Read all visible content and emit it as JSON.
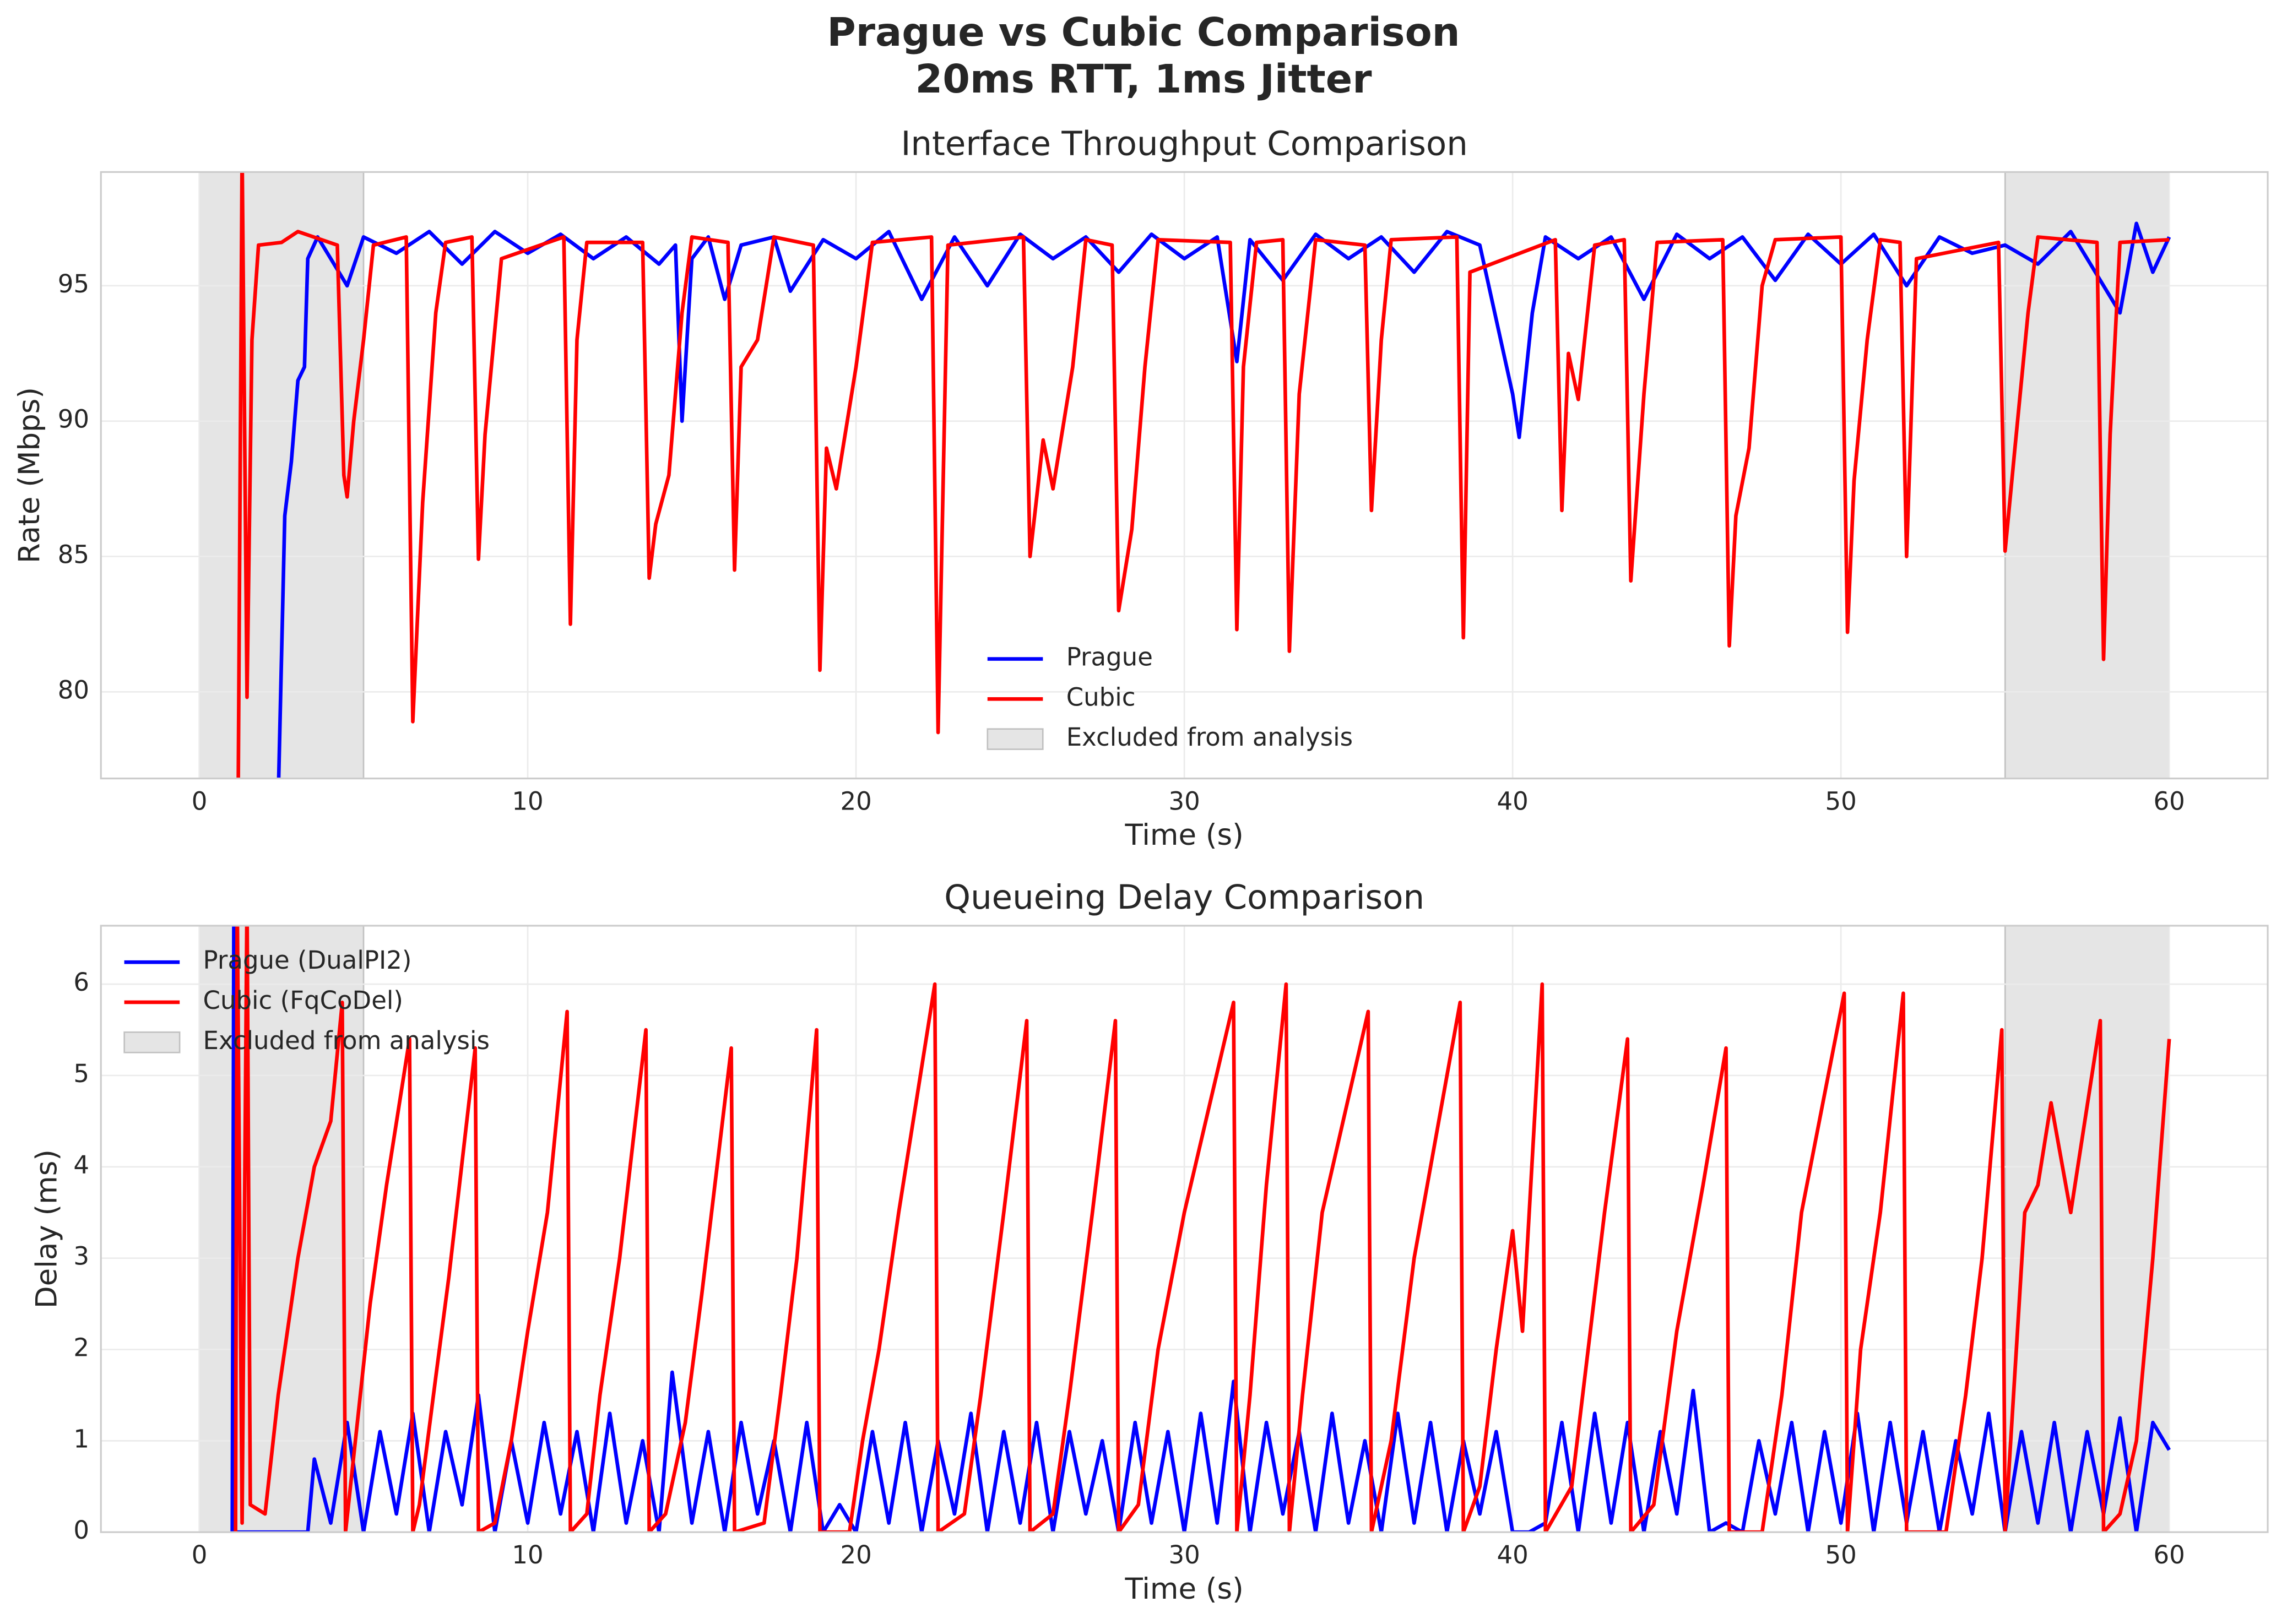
{
  "title": [
    "Prague vs Cubic Comparison",
    "20ms RTT, 1ms Jitter"
  ],
  "chart_data": [
    {
      "type": "line",
      "title": "Interface Throughput Comparison",
      "xlabel": "Time (s)",
      "ylabel": "Rate (Mbps)",
      "xlim": [
        -3,
        63
      ],
      "ylim": [
        76.8,
        99.2
      ],
      "xticks": [
        0,
        10,
        20,
        30,
        40,
        50,
        60
      ],
      "yticks": [
        80,
        85,
        90,
        95
      ],
      "grid": true,
      "legend": "lower center",
      "excluded_label": "Excluded from analysis",
      "excluded_color": "#bfbfbf",
      "excluded": [
        [
          0,
          5
        ],
        [
          55,
          60
        ]
      ],
      "series": [
        {
          "name": "Prague",
          "color": "#0000ff",
          "x": [
            2.4,
            2.6,
            2.8,
            3,
            3.2,
            3.3,
            3.6,
            4,
            4.5,
            5,
            6,
            7,
            8,
            9,
            10,
            11,
            12,
            13,
            14,
            14.5,
            14.7,
            15,
            15.5,
            16,
            16.5,
            17.5,
            18,
            19,
            20,
            21,
            22,
            23,
            24,
            25,
            26,
            27,
            28,
            29,
            30,
            31,
            31.6,
            32,
            33,
            34,
            35,
            36,
            37,
            38,
            39,
            40,
            40.2,
            40.6,
            41,
            42,
            43,
            44,
            45,
            46,
            47,
            48,
            49,
            50,
            51,
            52,
            53,
            54,
            55,
            56,
            57,
            58.5,
            59,
            59.5,
            60
          ],
          "values": [
            76,
            86.5,
            88.5,
            91.5,
            92,
            96,
            96.8,
            96,
            95,
            96.8,
            96.2,
            97,
            95.8,
            97,
            96.2,
            96.9,
            96,
            96.8,
            95.8,
            96.5,
            90,
            96,
            96.8,
            94.5,
            96.5,
            96.8,
            94.8,
            96.7,
            96,
            97,
            94.5,
            96.8,
            95,
            96.9,
            96,
            96.8,
            95.5,
            96.9,
            96,
            96.8,
            92.2,
            96.7,
            95.2,
            96.9,
            96,
            96.8,
            95.5,
            97,
            96.5,
            91,
            89.4,
            94,
            96.8,
            96,
            96.8,
            94.5,
            96.9,
            96,
            96.8,
            95.2,
            96.9,
            95.8,
            96.9,
            95,
            96.8,
            96.2,
            96.5,
            95.8,
            97,
            94,
            97.3,
            95.5,
            96.8
          ]
        },
        {
          "name": "Cubic",
          "color": "#ff0000",
          "x": [
            1.15,
            1.3,
            1.45,
            1.6,
            1.8,
            2.5,
            3,
            4.2,
            4.4,
            4.5,
            4.7,
            5,
            5.3,
            6.3,
            6.5,
            6.8,
            7.2,
            7.5,
            8.3,
            8.5,
            8.7,
            9.2,
            11.1,
            11.3,
            11.5,
            11.8,
            13.5,
            13.7,
            13.9,
            14.3,
            14.7,
            15,
            16.1,
            16.3,
            16.5,
            17,
            17.5,
            18.7,
            18.9,
            19.1,
            19.4,
            20,
            20.5,
            22.3,
            22.5,
            22.8,
            25.1,
            25.3,
            25.7,
            26,
            26.6,
            27,
            27.8,
            28,
            28.4,
            28.8,
            29.2,
            31.4,
            31.6,
            31.8,
            32.2,
            33,
            33.2,
            33.5,
            34,
            35.5,
            35.7,
            36,
            36.3,
            38.3,
            38.5,
            38.7,
            41.3,
            41.5,
            41.7,
            42,
            42.5,
            43.4,
            43.6,
            44,
            44.4,
            46.4,
            46.6,
            46.8,
            47.2,
            47.6,
            48,
            50,
            50.2,
            50.4,
            50.8,
            51.2,
            51.8,
            52,
            52.3,
            54.8,
            55,
            55.3,
            55.7,
            56,
            57.8,
            58,
            58.2,
            58.5,
            60
          ],
          "values": [
            70,
            100,
            79.8,
            93,
            96.5,
            96.6,
            97,
            96.5,
            88,
            87.2,
            90,
            93,
            96.5,
            96.8,
            78.9,
            87,
            94,
            96.6,
            96.8,
            84.9,
            89.5,
            96,
            96.8,
            82.5,
            93,
            96.6,
            96.6,
            84.2,
            86.2,
            88,
            94,
            96.8,
            96.6,
            84.5,
            92,
            93,
            96.8,
            96.5,
            80.8,
            89,
            87.5,
            92,
            96.6,
            96.8,
            78.5,
            96.5,
            96.8,
            85,
            89.3,
            87.5,
            92,
            96.7,
            96.5,
            83,
            86,
            92,
            96.7,
            96.6,
            82.3,
            92,
            96.6,
            96.7,
            81.5,
            91,
            96.7,
            96.5,
            86.7,
            93,
            96.7,
            96.8,
            82,
            95.5,
            96.7,
            86.7,
            92.5,
            90.8,
            96.5,
            96.7,
            84.1,
            91,
            96.6,
            96.7,
            81.7,
            86.5,
            89,
            95,
            96.7,
            96.8,
            82.2,
            87.8,
            93,
            96.7,
            96.6,
            85,
            96,
            96.6,
            85.2,
            89,
            94,
            96.8,
            96.6,
            81.2,
            89.5,
            96.6,
            96.7
          ]
        }
      ]
    },
    {
      "type": "line",
      "title": "Queueing Delay Comparison",
      "xlabel": "Time (s)",
      "ylabel": "Delay (ms)",
      "xlim": [
        -3,
        63
      ],
      "ylim": [
        0,
        6.64
      ],
      "xticks": [
        0,
        10,
        20,
        30,
        40,
        50,
        60
      ],
      "yticks": [
        0,
        1,
        2,
        3,
        4,
        5,
        6
      ],
      "grid": true,
      "legend": "upper left",
      "excluded_label": "Excluded from analysis",
      "excluded_color": "#bfbfbf",
      "excluded": [
        [
          0,
          5
        ],
        [
          55,
          60
        ]
      ],
      "series": [
        {
          "name": "Prague (DualPI2)",
          "color": "#0000ff",
          "x": [
            1,
            1.05,
            1.1,
            3.3,
            3.5,
            4,
            4.5,
            5,
            5.5,
            6,
            6.5,
            7,
            7.5,
            8,
            8.5,
            9,
            9.5,
            10,
            10.5,
            11,
            11.5,
            12,
            12.5,
            13,
            13.5,
            14,
            14.4,
            15,
            15.5,
            16,
            16.5,
            17,
            17.5,
            18,
            18.5,
            19,
            19.5,
            20,
            20.5,
            21,
            21.5,
            22,
            22.5,
            23,
            23.5,
            24,
            24.5,
            25,
            25.5,
            26,
            26.5,
            27,
            27.5,
            28,
            28.5,
            29,
            29.5,
            30,
            30.5,
            31,
            31.5,
            32,
            32.5,
            33,
            33.5,
            34,
            34.5,
            35,
            35.5,
            36,
            36.5,
            37,
            37.5,
            38,
            38.5,
            39,
            39.5,
            40,
            40.5,
            41,
            41.5,
            42,
            42.5,
            43,
            43.5,
            44,
            44.5,
            45,
            45.5,
            46,
            46.5,
            47,
            47.5,
            48,
            48.5,
            49,
            49.5,
            50,
            50.5,
            51,
            51.5,
            52,
            52.5,
            53,
            53.5,
            54,
            54.5,
            55,
            55.5,
            56,
            56.5,
            57,
            57.5,
            58,
            58.5,
            59,
            59.5,
            60
          ],
          "values": [
            0,
            7,
            0,
            0,
            0.8,
            0.1,
            1.2,
            0,
            1.1,
            0.2,
            1.3,
            0,
            1.1,
            0.3,
            1.5,
            0,
            1,
            0.1,
            1.2,
            0.2,
            1.1,
            0,
            1.3,
            0.1,
            1,
            0,
            1.75,
            0.1,
            1.1,
            0,
            1.2,
            0.2,
            1,
            0,
            1.2,
            0,
            0.3,
            0,
            1.1,
            0.1,
            1.2,
            0,
            1,
            0.2,
            1.3,
            0,
            1.1,
            0.1,
            1.2,
            0,
            1.1,
            0.2,
            1,
            0,
            1.2,
            0.1,
            1.1,
            0,
            1.3,
            0.1,
            1.65,
            0,
            1.2,
            0.2,
            1.1,
            0,
            1.3,
            0.1,
            1,
            0,
            1.3,
            0.1,
            1.2,
            0,
            1,
            0.2,
            1.1,
            0,
            0,
            0.1,
            1.2,
            0,
            1.3,
            0.1,
            1.2,
            0,
            1.1,
            0.2,
            1.55,
            0,
            0.1,
            0,
            1,
            0.2,
            1.2,
            0,
            1.1,
            0.1,
            1.3,
            0,
            1.2,
            0.1,
            1.1,
            0,
            1,
            0.2,
            1.3,
            0,
            1.1,
            0.1,
            1.2,
            0,
            1.1,
            0.2,
            1.25,
            0,
            1.2,
            0.9
          ]
        },
        {
          "name": "Cubic (FqCoDel)",
          "color": "#ff0000",
          "x": [
            1.1,
            1.15,
            1.3,
            1.45,
            1.55,
            2,
            2.4,
            3,
            3.5,
            4,
            4.35,
            4.45,
            4.6,
            5.2,
            5.7,
            6.4,
            6.5,
            6.7,
            7.2,
            7.6,
            8.4,
            8.5,
            9,
            9.5,
            10,
            10.6,
            11.2,
            11.3,
            11.8,
            12.2,
            12.8,
            13.6,
            13.7,
            14.2,
            14.8,
            15.3,
            16.2,
            16.3,
            17.2,
            17.7,
            18.2,
            18.8,
            18.9,
            19.8,
            20.2,
            20.7,
            21.3,
            22.4,
            22.5,
            23.3,
            23.8,
            24.5,
            25.2,
            25.3,
            26,
            26.5,
            27.2,
            27.9,
            28,
            28.6,
            29.2,
            30,
            31.5,
            31.6,
            32,
            32.5,
            33.1,
            33.2,
            33.6,
            34.2,
            35.6,
            35.7,
            36.3,
            37,
            38.4,
            38.5,
            39,
            39.5,
            40,
            40.3,
            40.9,
            41,
            41.8,
            42.3,
            42.8,
            43.5,
            43.6,
            44.3,
            45,
            45.8,
            46.5,
            46.6,
            47.6,
            48.2,
            48.8,
            50.1,
            50.2,
            50.6,
            51.2,
            51.9,
            52,
            53.2,
            53.8,
            54.3,
            54.9,
            55,
            55.6,
            56,
            56.4,
            57,
            57.9,
            58,
            58.5,
            59,
            59.5,
            60
          ],
          "values": [
            0,
            7,
            0.1,
            7,
            0.3,
            0.2,
            1.5,
            3,
            4,
            4.5,
            5.8,
            0,
            0.5,
            2.5,
            3.8,
            5.4,
            0,
            0.3,
            1.7,
            2.8,
            5.3,
            0,
            0.1,
            1,
            2.2,
            3.5,
            5.7,
            0,
            0.2,
            1.5,
            3,
            5.5,
            0,
            0.2,
            1.2,
            2.6,
            5.3,
            0,
            0.1,
            1.5,
            3,
            5.5,
            0,
            0,
            1,
            2,
            3.5,
            6,
            0,
            0.2,
            1.5,
            3.5,
            5.6,
            0,
            0.2,
            1.5,
            3.5,
            5.6,
            0,
            0.3,
            2,
            3.5,
            5.8,
            0,
            1.5,
            3.8,
            6,
            0,
            1.5,
            3.5,
            5.7,
            0,
            1,
            3,
            5.8,
            0,
            0.5,
            2,
            3.3,
            2.2,
            6,
            0,
            0.5,
            2,
            3.5,
            5.4,
            0,
            0.3,
            2.2,
            3.8,
            5.3,
            0,
            0,
            1.5,
            3.5,
            5.9,
            0,
            2,
            3.5,
            5.9,
            0,
            0,
            1.5,
            3,
            5.5,
            0,
            3.5,
            3.8,
            4.7,
            3.5,
            5.6,
            0,
            0.2,
            1,
            3,
            5.4
          ]
        }
      ]
    }
  ]
}
